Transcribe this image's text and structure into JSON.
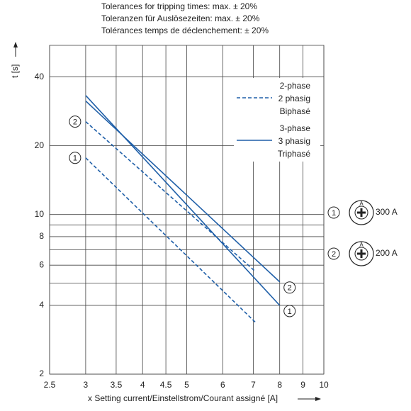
{
  "chart_data": {
    "type": "line",
    "title": [
      "Tolerances for tripping times: max. ± 20%",
      "Toleranzen für Auslösezeiten: max. ± 20%",
      "Tolérances temps de déclenchement: ± 20%"
    ],
    "xlabel": "x Setting current/Einstellstrom/Courant assigné [A]",
    "ylabel": "t [s]",
    "log_x": true,
    "log_y": true,
    "grid": true,
    "xlim": [
      2.5,
      10
    ],
    "xticks": [
      2.5,
      3,
      3.5,
      4,
      4.5,
      5,
      6,
      7,
      8,
      9,
      10
    ],
    "ylim": [
      2,
      55
    ],
    "yticks": [
      2,
      4,
      6,
      8,
      10,
      20,
      40
    ],
    "yminor": [
      5,
      7,
      9
    ],
    "legend": "upper right",
    "series": [
      {
        "name": [
          "2-phase",
          "2 phasig",
          "Biphasé"
        ],
        "color": "#1f5fa8",
        "dashed": true,
        "label_at": "start",
        "curves": [
          {
            "label": "1",
            "x": [
              3,
              7.1
            ],
            "values": [
              17.7,
              3.35
            ]
          },
          {
            "label": "2",
            "x": [
              3,
              7.06
            ],
            "values": [
              25.5,
              5.65
            ]
          }
        ]
      },
      {
        "name": [
          "3-phase",
          "3 phasig",
          "Triphasé"
        ],
        "color": "#1f5fa8",
        "dashed": false,
        "label_at": "end",
        "curves": [
          {
            "label": "1",
            "x": [
              3,
              8
            ],
            "values": [
              33.2,
              4
            ]
          },
          {
            "label": "2",
            "x": [
              3,
              8
            ],
            "values": [
              31.4,
              5.07
            ]
          }
        ]
      }
    ],
    "dial_letter": "A",
    "settings": [
      {
        "label": "1",
        "value": "300 A"
      },
      {
        "label": "2",
        "value": "200 A"
      }
    ]
  }
}
